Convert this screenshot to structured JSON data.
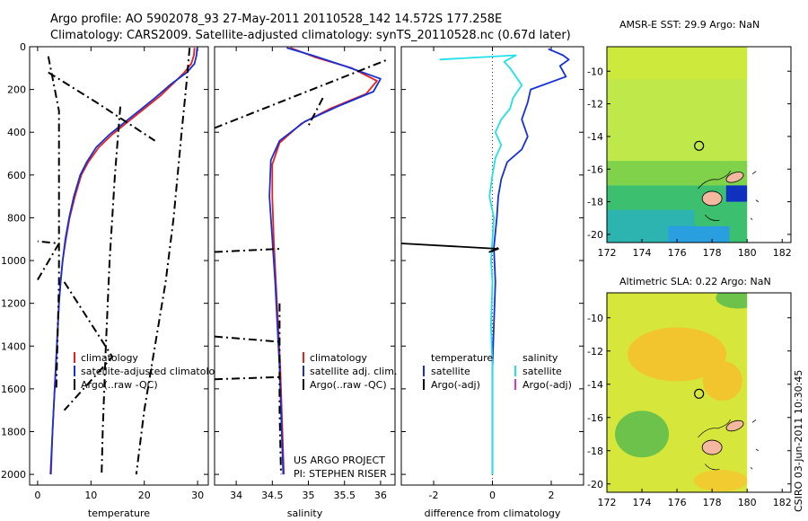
{
  "header": {
    "line1": "Argo profile: AO 5902078_93 27-May-2011 20110528_142 14.572S 177.258E",
    "line2": "Climatology: CARS2009. Satellite-adjusted climatology: synTS_20110528.nc (0.67d later)"
  },
  "colors": {
    "clim": "#e8201c",
    "sat": "#1430d8",
    "argo": "#000000",
    "cyan": "#22e0e8",
    "magenta": "#e030d0"
  },
  "chart_data": [
    {
      "id": "temperature",
      "type": "line",
      "xlabel": "temperature",
      "xlim": [
        -1.5,
        32
      ],
      "ylim": [
        2050,
        0
      ],
      "xticks": [
        "0",
        "10",
        "20",
        "30"
      ],
      "xtick_values": [
        0,
        10,
        20,
        30
      ],
      "yticks": [
        "0",
        "200",
        "400",
        "600",
        "800",
        "1000",
        "1200",
        "1400",
        "1600",
        "1800",
        "2000"
      ],
      "ytick_values": [
        0,
        200,
        400,
        600,
        800,
        1000,
        1200,
        1400,
        1600,
        1800,
        2000
      ],
      "series": [
        {
          "name": "climatology",
          "color_key": "clim",
          "style": "solid",
          "points": [
            [
              29.4,
              5
            ],
            [
              29.3,
              40
            ],
            [
              28.8,
              80
            ],
            [
              27.5,
              120
            ],
            [
              25.5,
              170
            ],
            [
              23,
              230
            ],
            [
              20,
              290
            ],
            [
              17,
              350
            ],
            [
              14,
              410
            ],
            [
              11.5,
              470
            ],
            [
              9.5,
              540
            ],
            [
              8.2,
              600
            ],
            [
              7,
              700
            ],
            [
              6,
              800
            ],
            [
              5.3,
              900
            ],
            [
              4.7,
              1000
            ],
            [
              4.3,
              1100
            ],
            [
              4,
              1200
            ],
            [
              3.6,
              1400
            ],
            [
              3.2,
              1600
            ],
            [
              2.8,
              1800
            ],
            [
              2.5,
              2000
            ]
          ]
        },
        {
          "name": "satellite-adjusted climatology",
          "color_key": "sat",
          "style": "solid",
          "points": [
            [
              29.9,
              5
            ],
            [
              29.8,
              40
            ],
            [
              29.4,
              80
            ],
            [
              28,
              120
            ],
            [
              25,
              175
            ],
            [
              22,
              240
            ],
            [
              19,
              300
            ],
            [
              16.5,
              350
            ],
            [
              13.5,
              410
            ],
            [
              11,
              470
            ],
            [
              9.2,
              540
            ],
            [
              8,
              600
            ],
            [
              6.8,
              700
            ],
            [
              5.9,
              800
            ],
            [
              5.2,
              900
            ],
            [
              4.7,
              1000
            ],
            [
              4.3,
              1100
            ],
            [
              4,
              1200
            ],
            [
              3.6,
              1400
            ],
            [
              3.2,
              1600
            ],
            [
              2.8,
              1800
            ],
            [
              2.4,
              2000
            ]
          ]
        },
        {
          "name": "Argo(..raw -QC)",
          "color_key": "argo",
          "style": "dashdot",
          "points": [
            [
              28.5,
              5
            ],
            [
              28,
              150
            ],
            [
              27,
              400
            ],
            [
              25.5,
              800
            ],
            [
              24,
              1100
            ],
            [
              22,
              1400
            ],
            [
              20,
              1700
            ],
            [
              18.5,
              2000
            ]
          ]
        },
        {
          "name": "Argo dashed 2",
          "color_key": "argo",
          "style": "dashdot",
          "points": [
            [
              15.5,
              280
            ],
            [
              14.5,
              600
            ],
            [
              13.5,
              1000
            ],
            [
              12.8,
              1400
            ],
            [
              12.2,
              1800
            ],
            [
              12,
              2000
            ]
          ]
        },
        {
          "name": "Argo dashed 3",
          "color_key": "argo",
          "style": "dashdot",
          "points": [
            [
              2,
              45
            ],
            [
              4,
              300
            ],
            [
              4,
              700
            ],
            [
              4,
              1100
            ],
            [
              3.8,
              1300
            ],
            [
              3.5,
              1600
            ]
          ]
        },
        {
          "name": "Argo dashed 4",
          "color_key": "argo",
          "style": "dashdot",
          "points": [
            [
              2,
              120
            ],
            [
              11,
              260
            ],
            [
              22,
              440
            ]
          ]
        },
        {
          "name": "Argo dashed 5",
          "color_key": "argo",
          "style": "dashdot",
          "points": [
            [
              5,
              1100
            ],
            [
              14,
              1450
            ],
            [
              5,
              1700
            ]
          ]
        },
        {
          "name": "Argo dashed 6",
          "color_key": "argo",
          "style": "dashdot",
          "points": [
            [
              0,
              1090
            ],
            [
              4,
              920
            ],
            [
              0,
              910
            ]
          ]
        }
      ],
      "legend": [
        "climatology",
        "satellite-adjusted climatolo",
        "Argo(..raw -QC)"
      ]
    },
    {
      "id": "salinity",
      "type": "line",
      "xlabel": "salinity",
      "xlim": [
        33.7,
        36.2
      ],
      "ylim": [
        2050,
        0
      ],
      "xticks": [
        "34",
        "34.5",
        "35",
        "35.5",
        "36"
      ],
      "xtick_values": [
        34,
        34.5,
        35,
        35.5,
        36
      ],
      "series": [
        {
          "name": "climatology",
          "color_key": "clim",
          "style": "solid",
          "points": [
            [
              34.75,
              5
            ],
            [
              35.1,
              50
            ],
            [
              35.6,
              100
            ],
            [
              35.95,
              160
            ],
            [
              35.8,
              220
            ],
            [
              35.3,
              290
            ],
            [
              34.9,
              360
            ],
            [
              34.6,
              450
            ],
            [
              34.5,
              550
            ],
            [
              34.5,
              700
            ],
            [
              34.52,
              900
            ],
            [
              34.55,
              1100
            ],
            [
              34.58,
              1300
            ],
            [
              34.61,
              1500
            ],
            [
              34.64,
              1800
            ],
            [
              34.66,
              2000
            ]
          ]
        },
        {
          "name": "satellite adj. clim.",
          "color_key": "sat",
          "style": "solid",
          "points": [
            [
              34.7,
              5
            ],
            [
              35.05,
              40
            ],
            [
              35.5,
              90
            ],
            [
              36.0,
              150
            ],
            [
              35.9,
              210
            ],
            [
              35.4,
              280
            ],
            [
              34.95,
              350
            ],
            [
              34.6,
              440
            ],
            [
              34.48,
              530
            ],
            [
              34.46,
              700
            ],
            [
              34.5,
              900
            ],
            [
              34.54,
              1100
            ],
            [
              34.57,
              1300
            ],
            [
              34.6,
              1500
            ],
            [
              34.63,
              1800
            ],
            [
              34.65,
              2000
            ]
          ]
        },
        {
          "name": "Argo(..raw -QC)",
          "color_key": "argo",
          "style": "dashdot",
          "points": [
            [
              34.6,
              1200
            ],
            [
              34.6,
              1500
            ],
            [
              34.6,
              1700
            ],
            [
              34.62,
              2000
            ]
          ]
        },
        {
          "name": "Argo diag 1",
          "color_key": "argo",
          "style": "dashdot",
          "points": [
            [
              33.7,
              380
            ],
            [
              36.1,
              60
            ]
          ]
        },
        {
          "name": "Argo diag 2",
          "color_key": "argo",
          "style": "dashdot",
          "points": [
            [
              35.2,
              240
            ],
            [
              35.0,
              370
            ]
          ]
        },
        {
          "name": "Argo h1",
          "color_key": "argo",
          "style": "dashdot",
          "points": [
            [
              33.7,
              960
            ],
            [
              34.6,
              945
            ]
          ]
        },
        {
          "name": "Argo h2",
          "color_key": "argo",
          "style": "dashdot",
          "points": [
            [
              33.7,
              1355
            ],
            [
              34.6,
              1380
            ]
          ]
        },
        {
          "name": "Argo h3",
          "color_key": "argo",
          "style": "dashdot",
          "points": [
            [
              33.7,
              1555
            ],
            [
              34.6,
              1545
            ]
          ]
        }
      ],
      "legend": [
        "climatology",
        "satellite adj. clim.",
        "Argo(..raw -QC)"
      ],
      "annotation": [
        "US ARGO PROJECT",
        "PI: STEPHEN RISER"
      ]
    },
    {
      "id": "difference",
      "type": "line",
      "xlabel": "difference from climatology",
      "xlim": [
        -3.1,
        3.1
      ],
      "ylim": [
        2050,
        0
      ],
      "xticks": [
        "-2",
        "0",
        "2"
      ],
      "xtick_values": [
        -2,
        0,
        2
      ],
      "series": [
        {
          "name": "temperature satellite",
          "color_key": "sat",
          "style": "solid",
          "points": [
            [
              1.9,
              10
            ],
            [
              2.4,
              40
            ],
            [
              2.6,
              60
            ],
            [
              2.3,
              90
            ],
            [
              2.5,
              140
            ],
            [
              1.3,
              200
            ],
            [
              1.2,
              260
            ],
            [
              1.0,
              340
            ],
            [
              1.2,
              420
            ],
            [
              1.0,
              480
            ],
            [
              0.5,
              540
            ],
            [
              0.3,
              620
            ],
            [
              0.2,
              700
            ],
            [
              0.15,
              800
            ],
            [
              0.05,
              940
            ],
            [
              0.1,
              1100
            ],
            [
              0.05,
              1300
            ],
            [
              0,
              1500
            ],
            [
              0,
              1700
            ],
            [
              0,
              1900
            ],
            [
              0,
              2000
            ]
          ]
        },
        {
          "name": "salinity satellite",
          "color_key": "cyan",
          "style": "solid",
          "points": [
            [
              -1.8,
              60
            ],
            [
              0.8,
              40
            ],
            [
              0.4,
              70
            ],
            [
              0.6,
              100
            ],
            [
              0.8,
              140
            ],
            [
              1.0,
              180
            ],
            [
              0.7,
              240
            ],
            [
              0.6,
              290
            ],
            [
              0.3,
              340
            ],
            [
              0.1,
              400
            ],
            [
              0.3,
              460
            ],
            [
              0.1,
              520
            ],
            [
              0,
              600
            ],
            [
              -0.1,
              700
            ],
            [
              0.05,
              800
            ],
            [
              0,
              900
            ],
            [
              -0.05,
              1000
            ],
            [
              0,
              1100
            ],
            [
              -0.05,
              1300
            ],
            [
              0,
              1500
            ],
            [
              0,
              1700
            ],
            [
              0,
              1900
            ],
            [
              0,
              2000
            ]
          ]
        },
        {
          "name": "Argo(-adj)",
          "color_key": "argo",
          "style": "solid",
          "points": [
            [
              -3.1,
              920
            ],
            [
              0.2,
              945
            ],
            [
              -0.1,
              960
            ],
            [
              0.2,
              940
            ]
          ]
        }
      ],
      "legend_headers": [
        "temperature",
        "salinity"
      ],
      "legend_left": [
        "satellite",
        "Argo(-adj)"
      ],
      "legend_right": [
        "satellite",
        "Argo(-adj)"
      ]
    }
  ],
  "maps": [
    {
      "title": "AMSR-E SST: 29.9 Argo: NaN",
      "lon": [
        172,
        182.5
      ],
      "lat": [
        -20.5,
        -8.5
      ],
      "xticks": [
        "172",
        "174",
        "176",
        "178",
        "180",
        "182"
      ],
      "xtick_values": [
        172,
        174,
        176,
        178,
        180,
        182
      ],
      "yticks": [
        "-10",
        "-12",
        "-14",
        "-16",
        "-18",
        "-20"
      ],
      "ytick_values": [
        -10,
        -12,
        -14,
        -16,
        -18,
        -20
      ],
      "float_position": [
        177.258,
        -14.572
      ]
    },
    {
      "title": "Altimetric SLA: 0.22 Argo: NaN",
      "lon": [
        172,
        182.5
      ],
      "lat": [
        -20.5,
        -8.5
      ],
      "xticks": [
        "172",
        "174",
        "176",
        "178",
        "180",
        "182"
      ],
      "xtick_values": [
        172,
        174,
        176,
        178,
        180,
        182
      ],
      "yticks": [
        "-10",
        "-12",
        "-14",
        "-16",
        "-18",
        "-20"
      ],
      "ytick_values": [
        -10,
        -12,
        -14,
        -16,
        -18,
        -20
      ],
      "float_position": [
        177.258,
        -14.572
      ]
    }
  ],
  "footer": {
    "credit": "CSIRO 03-Jun-2011 10:30:45"
  }
}
